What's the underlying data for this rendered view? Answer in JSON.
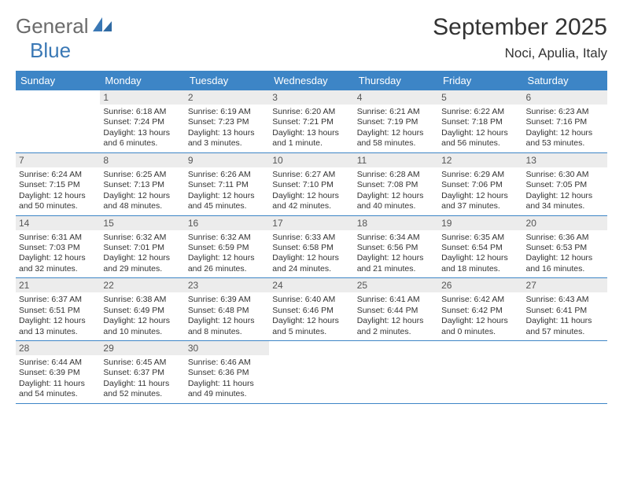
{
  "brand": {
    "part1": "General",
    "part2": "Blue"
  },
  "title": "September 2025",
  "location": "Noci, Apulia, Italy",
  "weekdays": [
    "Sunday",
    "Monday",
    "Tuesday",
    "Wednesday",
    "Thursday",
    "Friday",
    "Saturday"
  ],
  "colors": {
    "header_bg": "#3d85c6",
    "header_text": "#ffffff",
    "daynum_bg": "#ececec",
    "daynum_text": "#555555",
    "row_divider": "#3d85c6",
    "logo_gray": "#6b6b6b",
    "logo_blue": "#3a78b5",
    "body_text": "#333333",
    "page_bg": "#ffffff"
  },
  "weeks": [
    [
      {
        "num": "",
        "sunrise": "",
        "sunset": "",
        "daylight": ""
      },
      {
        "num": "1",
        "sunrise": "Sunrise: 6:18 AM",
        "sunset": "Sunset: 7:24 PM",
        "daylight": "Daylight: 13 hours and 6 minutes."
      },
      {
        "num": "2",
        "sunrise": "Sunrise: 6:19 AM",
        "sunset": "Sunset: 7:23 PM",
        "daylight": "Daylight: 13 hours and 3 minutes."
      },
      {
        "num": "3",
        "sunrise": "Sunrise: 6:20 AM",
        "sunset": "Sunset: 7:21 PM",
        "daylight": "Daylight: 13 hours and 1 minute."
      },
      {
        "num": "4",
        "sunrise": "Sunrise: 6:21 AM",
        "sunset": "Sunset: 7:19 PM",
        "daylight": "Daylight: 12 hours and 58 minutes."
      },
      {
        "num": "5",
        "sunrise": "Sunrise: 6:22 AM",
        "sunset": "Sunset: 7:18 PM",
        "daylight": "Daylight: 12 hours and 56 minutes."
      },
      {
        "num": "6",
        "sunrise": "Sunrise: 6:23 AM",
        "sunset": "Sunset: 7:16 PM",
        "daylight": "Daylight: 12 hours and 53 minutes."
      }
    ],
    [
      {
        "num": "7",
        "sunrise": "Sunrise: 6:24 AM",
        "sunset": "Sunset: 7:15 PM",
        "daylight": "Daylight: 12 hours and 50 minutes."
      },
      {
        "num": "8",
        "sunrise": "Sunrise: 6:25 AM",
        "sunset": "Sunset: 7:13 PM",
        "daylight": "Daylight: 12 hours and 48 minutes."
      },
      {
        "num": "9",
        "sunrise": "Sunrise: 6:26 AM",
        "sunset": "Sunset: 7:11 PM",
        "daylight": "Daylight: 12 hours and 45 minutes."
      },
      {
        "num": "10",
        "sunrise": "Sunrise: 6:27 AM",
        "sunset": "Sunset: 7:10 PM",
        "daylight": "Daylight: 12 hours and 42 minutes."
      },
      {
        "num": "11",
        "sunrise": "Sunrise: 6:28 AM",
        "sunset": "Sunset: 7:08 PM",
        "daylight": "Daylight: 12 hours and 40 minutes."
      },
      {
        "num": "12",
        "sunrise": "Sunrise: 6:29 AM",
        "sunset": "Sunset: 7:06 PM",
        "daylight": "Daylight: 12 hours and 37 minutes."
      },
      {
        "num": "13",
        "sunrise": "Sunrise: 6:30 AM",
        "sunset": "Sunset: 7:05 PM",
        "daylight": "Daylight: 12 hours and 34 minutes."
      }
    ],
    [
      {
        "num": "14",
        "sunrise": "Sunrise: 6:31 AM",
        "sunset": "Sunset: 7:03 PM",
        "daylight": "Daylight: 12 hours and 32 minutes."
      },
      {
        "num": "15",
        "sunrise": "Sunrise: 6:32 AM",
        "sunset": "Sunset: 7:01 PM",
        "daylight": "Daylight: 12 hours and 29 minutes."
      },
      {
        "num": "16",
        "sunrise": "Sunrise: 6:32 AM",
        "sunset": "Sunset: 6:59 PM",
        "daylight": "Daylight: 12 hours and 26 minutes."
      },
      {
        "num": "17",
        "sunrise": "Sunrise: 6:33 AM",
        "sunset": "Sunset: 6:58 PM",
        "daylight": "Daylight: 12 hours and 24 minutes."
      },
      {
        "num": "18",
        "sunrise": "Sunrise: 6:34 AM",
        "sunset": "Sunset: 6:56 PM",
        "daylight": "Daylight: 12 hours and 21 minutes."
      },
      {
        "num": "19",
        "sunrise": "Sunrise: 6:35 AM",
        "sunset": "Sunset: 6:54 PM",
        "daylight": "Daylight: 12 hours and 18 minutes."
      },
      {
        "num": "20",
        "sunrise": "Sunrise: 6:36 AM",
        "sunset": "Sunset: 6:53 PM",
        "daylight": "Daylight: 12 hours and 16 minutes."
      }
    ],
    [
      {
        "num": "21",
        "sunrise": "Sunrise: 6:37 AM",
        "sunset": "Sunset: 6:51 PM",
        "daylight": "Daylight: 12 hours and 13 minutes."
      },
      {
        "num": "22",
        "sunrise": "Sunrise: 6:38 AM",
        "sunset": "Sunset: 6:49 PM",
        "daylight": "Daylight: 12 hours and 10 minutes."
      },
      {
        "num": "23",
        "sunrise": "Sunrise: 6:39 AM",
        "sunset": "Sunset: 6:48 PM",
        "daylight": "Daylight: 12 hours and 8 minutes."
      },
      {
        "num": "24",
        "sunrise": "Sunrise: 6:40 AM",
        "sunset": "Sunset: 6:46 PM",
        "daylight": "Daylight: 12 hours and 5 minutes."
      },
      {
        "num": "25",
        "sunrise": "Sunrise: 6:41 AM",
        "sunset": "Sunset: 6:44 PM",
        "daylight": "Daylight: 12 hours and 2 minutes."
      },
      {
        "num": "26",
        "sunrise": "Sunrise: 6:42 AM",
        "sunset": "Sunset: 6:42 PM",
        "daylight": "Daylight: 12 hours and 0 minutes."
      },
      {
        "num": "27",
        "sunrise": "Sunrise: 6:43 AM",
        "sunset": "Sunset: 6:41 PM",
        "daylight": "Daylight: 11 hours and 57 minutes."
      }
    ],
    [
      {
        "num": "28",
        "sunrise": "Sunrise: 6:44 AM",
        "sunset": "Sunset: 6:39 PM",
        "daylight": "Daylight: 11 hours and 54 minutes."
      },
      {
        "num": "29",
        "sunrise": "Sunrise: 6:45 AM",
        "sunset": "Sunset: 6:37 PM",
        "daylight": "Daylight: 11 hours and 52 minutes."
      },
      {
        "num": "30",
        "sunrise": "Sunrise: 6:46 AM",
        "sunset": "Sunset: 6:36 PM",
        "daylight": "Daylight: 11 hours and 49 minutes."
      },
      {
        "num": "",
        "sunrise": "",
        "sunset": "",
        "daylight": ""
      },
      {
        "num": "",
        "sunrise": "",
        "sunset": "",
        "daylight": ""
      },
      {
        "num": "",
        "sunrise": "",
        "sunset": "",
        "daylight": ""
      },
      {
        "num": "",
        "sunrise": "",
        "sunset": "",
        "daylight": ""
      }
    ]
  ]
}
